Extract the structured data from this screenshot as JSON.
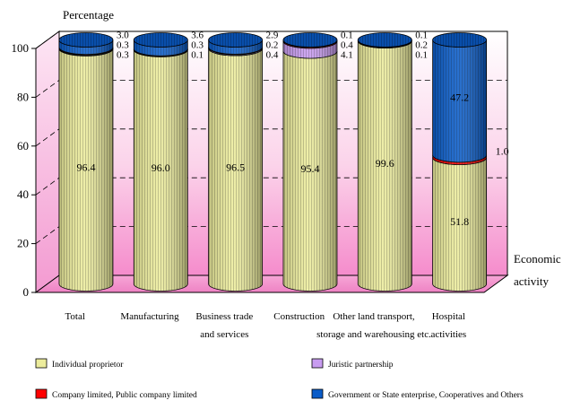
{
  "chart_data": {
    "type": "bar",
    "stacked": true,
    "style": "3d-cylinder",
    "y_axis_title": "Percentage",
    "x_axis_title": [
      "Economic",
      "activity"
    ],
    "ylim": [
      0,
      100
    ],
    "y_ticks": [
      "0",
      "20",
      "40",
      "60",
      "80",
      "100"
    ],
    "grid": "dashed-horizontal",
    "legend_position": "bottom",
    "categories": [
      [
        "Total"
      ],
      [
        "Manufacturing"
      ],
      [
        "Business trade",
        "and  services"
      ],
      [
        "Construction"
      ],
      [
        "Other land transport,",
        "storage and warehousing etc."
      ],
      [
        "Hospital",
        "activities"
      ]
    ],
    "series": [
      {
        "name": "Individual proprietor",
        "color": "#ecec9c",
        "values": [
          96.4,
          96.0,
          96.5,
          95.4,
          99.6,
          51.8
        ],
        "labels": [
          "96.4",
          "96.0",
          "96.5",
          "95.4",
          "99.6",
          "51.8"
        ]
      },
      {
        "name": "Juristic partnership",
        "color": "#c89cf0",
        "values": [
          0.3,
          0.1,
          0.4,
          4.1,
          0.1,
          0.0
        ],
        "labels": [
          "0.3",
          "0.1",
          "0.4",
          "4.1",
          "0.1",
          ""
        ]
      },
      {
        "name": "Company limited, Public company limited",
        "color": "#ff0000",
        "values": [
          0.3,
          0.3,
          0.2,
          0.4,
          0.2,
          1.0
        ],
        "labels": [
          "0.3",
          "0.3",
          "0.2",
          "0.4",
          "0.2",
          "1.0"
        ]
      },
      {
        "name": "Government or State enterprise, Cooperatives and Others",
        "color": "#0a5cc8",
        "values": [
          3.0,
          3.6,
          2.9,
          0.1,
          0.1,
          47.2
        ],
        "labels": [
          "3.0",
          "3.6",
          "2.9",
          "0.1",
          "0.1",
          "47.2"
        ]
      }
    ],
    "legend": [
      "Individual proprietor",
      "Juristic partnership",
      "Company limited, Public company limited",
      "Government or State enterprise, Cooperatives and Others"
    ]
  }
}
